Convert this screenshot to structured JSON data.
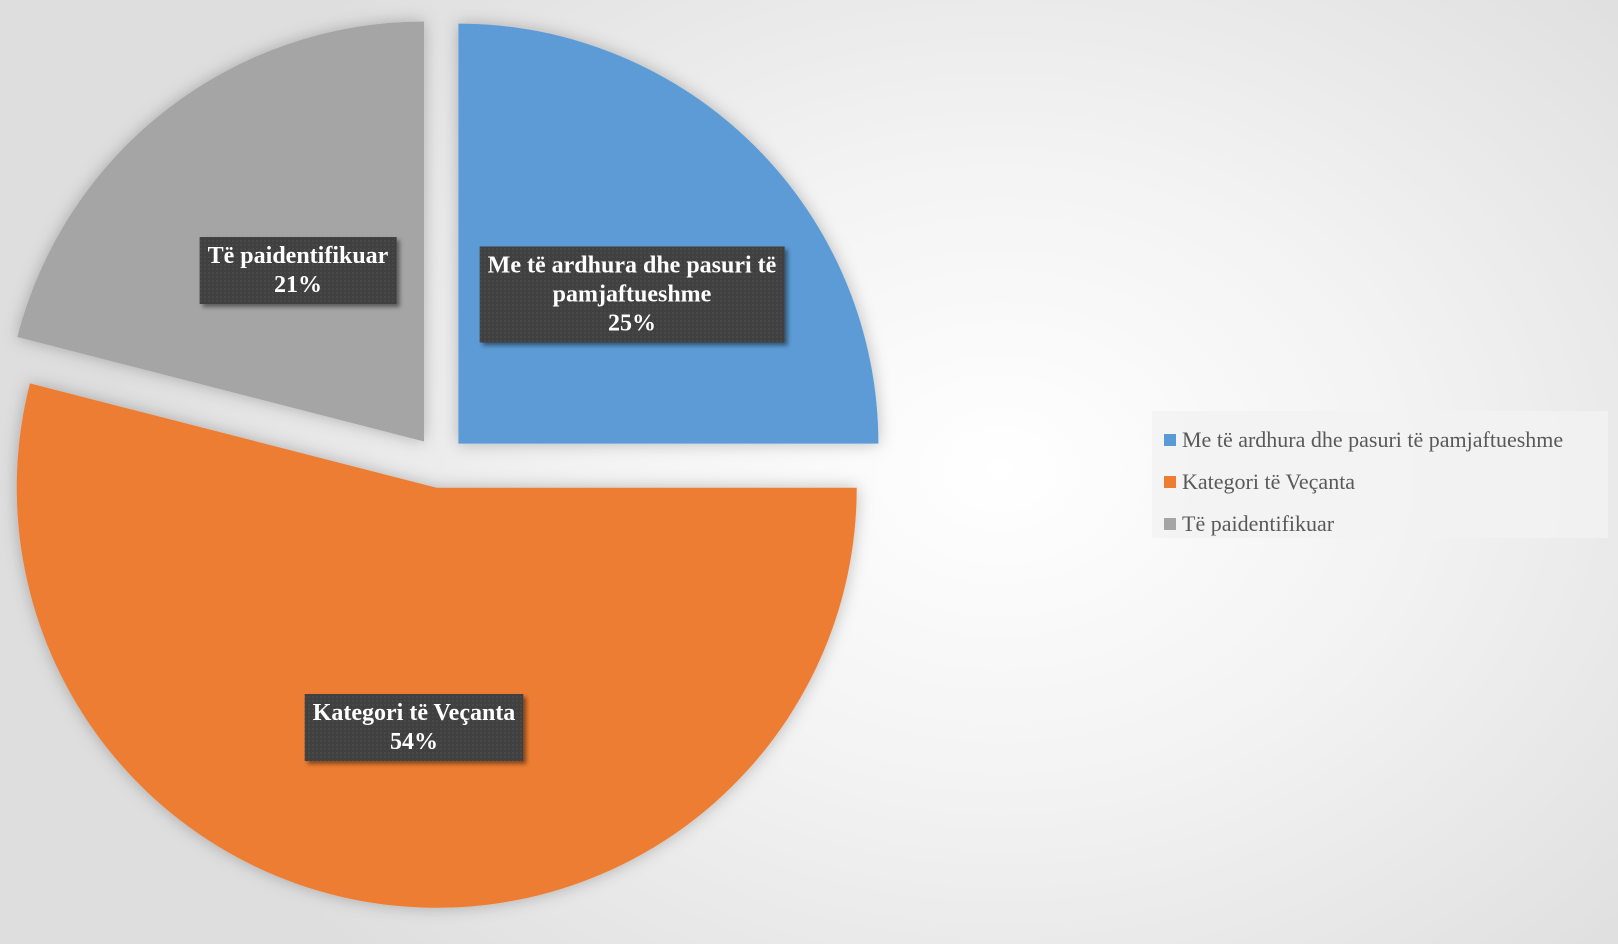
{
  "chart_data": {
    "type": "pie",
    "title": "",
    "legend_position": "right",
    "exploded": true,
    "slices": [
      {
        "label": "Me të ardhura dhe pasuri të pamjaftueshme",
        "label_lines": [
          "Me të ardhura dhe pasuri të",
          "pamjaftueshme"
        ],
        "value": 25,
        "percent_label": "25%",
        "color": "#5B9BD5"
      },
      {
        "label": "Kategori të Veçanta",
        "label_lines": [
          "Kategori të Veçanta"
        ],
        "value": 54,
        "percent_label": "54%",
        "color": "#ED7D31"
      },
      {
        "label": "Të paidentifikuar",
        "label_lines": [
          "Të paidentifikuar"
        ],
        "value": 21,
        "percent_label": "21%",
        "color": "#A5A5A5"
      }
    ],
    "data_label_background": "#404040",
    "legend_text_color": "#595959"
  }
}
